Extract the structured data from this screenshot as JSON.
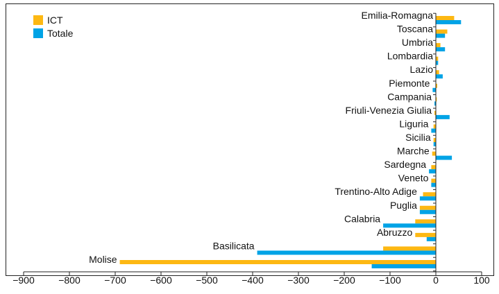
{
  "chart_data": {
    "type": "bar",
    "orientation": "horizontal",
    "title": "",
    "xlabel": "",
    "ylabel": "",
    "xlim": [
      -900,
      100
    ],
    "xticks": [
      -900,
      -800,
      -700,
      -600,
      -500,
      -400,
      -300,
      -200,
      -100,
      0,
      100
    ],
    "grid": false,
    "legend_position": "top-left",
    "categories": [
      "Emilia-Romagna",
      "Toscana",
      "Umbria",
      "Lombardia",
      "Lazio",
      "Piemonte",
      "Campania",
      "Friuli-Venezia Giulia",
      "Liguria",
      "Sicilia",
      "Marche",
      "Sardegna",
      "Veneto",
      "Trentino-Alto Adige",
      "Puglia",
      "Calabria",
      "Abruzzo",
      "Basilicata",
      "Molise"
    ],
    "series": [
      {
        "name": "ICT",
        "color": "#FDB813",
        "values": [
          40,
          25,
          10,
          5,
          7,
          3,
          2,
          -3,
          -5,
          -5,
          -8,
          -10,
          -10,
          -28,
          -35,
          -45,
          -45,
          -115,
          -690
        ]
      },
      {
        "name": "Totale",
        "color": "#00A3E6",
        "values": [
          55,
          20,
          20,
          5,
          15,
          -7,
          -3,
          30,
          -10,
          -5,
          35,
          -15,
          -10,
          -35,
          -35,
          -115,
          -20,
          -390,
          -140
        ]
      }
    ]
  }
}
